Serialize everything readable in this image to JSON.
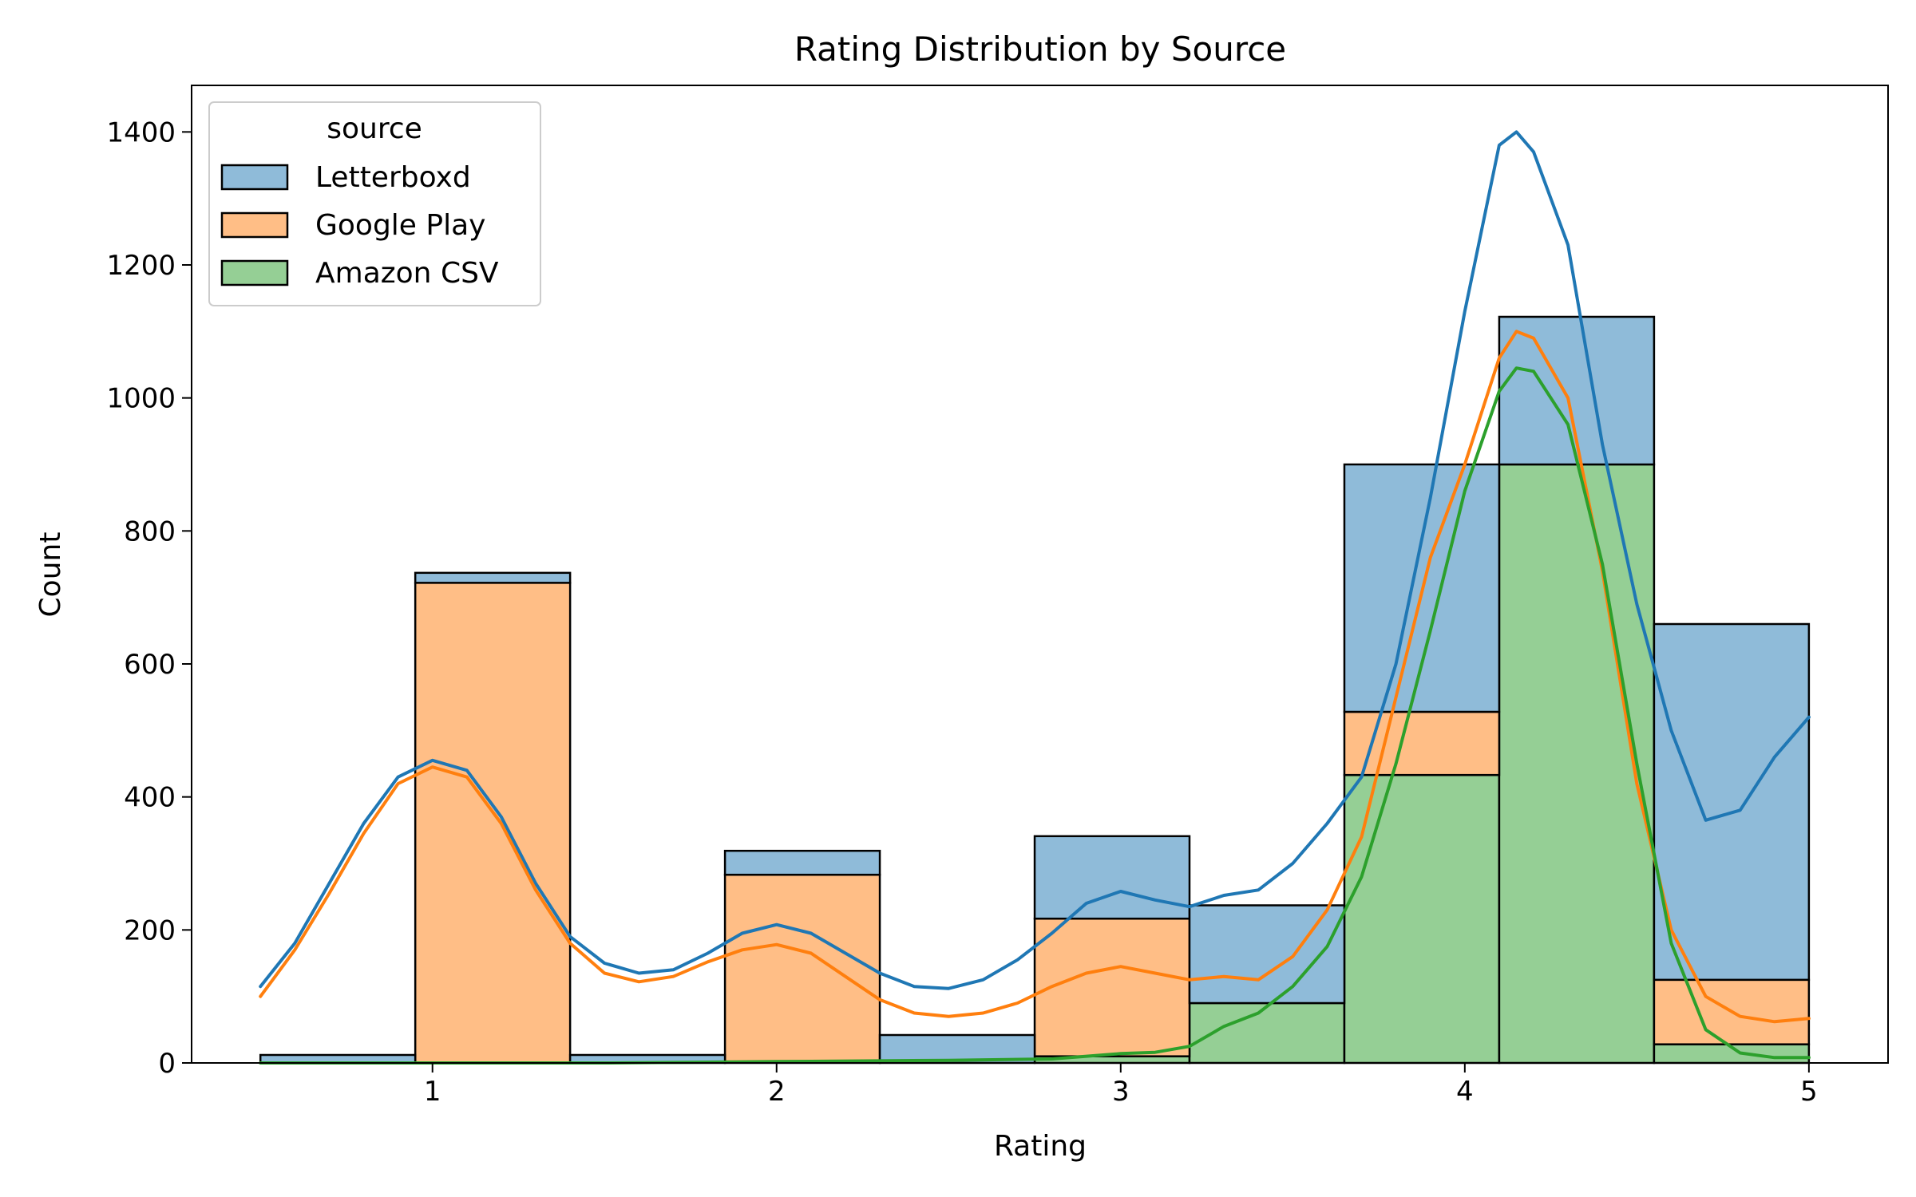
{
  "chart_data": {
    "type": "bar",
    "stacked": true,
    "title": "Rating Distribution by Source",
    "xlabel": "Rating",
    "ylabel": "Count",
    "xlim": [
      0.3,
      5.23
    ],
    "ylim": [
      0,
      1470
    ],
    "xticks": [
      1,
      2,
      3,
      4,
      5
    ],
    "yticks": [
      0,
      200,
      400,
      600,
      800,
      1000,
      1200,
      1400
    ],
    "grid": false,
    "legend": {
      "title": "source",
      "placement": "top-left",
      "entries": [
        "Letterboxd",
        "Google Play",
        "Amazon CSV"
      ]
    },
    "bin_edges": [
      0.5,
      0.95,
      1.4,
      1.85,
      2.3,
      2.75,
      3.2,
      3.65,
      4.1,
      4.55,
      5.0
    ],
    "series": [
      {
        "name": "Amazon CSV",
        "color": "#2ca02c",
        "fill": "#95cf95",
        "values": [
          0,
          0,
          0,
          0,
          0,
          10,
          90,
          433,
          900,
          28
        ]
      },
      {
        "name": "Google Play",
        "color": "#ff7f0e",
        "fill": "#ffbe86",
        "values": [
          0,
          722,
          0,
          283,
          0,
          207,
          0,
          95,
          0,
          97
        ]
      },
      {
        "name": "Letterboxd",
        "color": "#1f77b4",
        "fill": "#8fbbd9",
        "values": [
          12,
          15,
          12,
          36,
          42,
          124,
          147,
          372,
          222,
          535
        ]
      }
    ],
    "kde": [
      {
        "name": "Letterboxd",
        "color": "#1f77b4",
        "points": [
          [
            0.5,
            115
          ],
          [
            0.6,
            180
          ],
          [
            0.7,
            270
          ],
          [
            0.8,
            360
          ],
          [
            0.9,
            430
          ],
          [
            1.0,
            455
          ],
          [
            1.1,
            440
          ],
          [
            1.2,
            370
          ],
          [
            1.3,
            270
          ],
          [
            1.4,
            190
          ],
          [
            1.5,
            150
          ],
          [
            1.6,
            135
          ],
          [
            1.7,
            140
          ],
          [
            1.8,
            165
          ],
          [
            1.9,
            195
          ],
          [
            2.0,
            208
          ],
          [
            2.1,
            195
          ],
          [
            2.2,
            165
          ],
          [
            2.3,
            135
          ],
          [
            2.4,
            115
          ],
          [
            2.5,
            112
          ],
          [
            2.6,
            125
          ],
          [
            2.7,
            155
          ],
          [
            2.8,
            195
          ],
          [
            2.9,
            240
          ],
          [
            3.0,
            258
          ],
          [
            3.1,
            245
          ],
          [
            3.2,
            235
          ],
          [
            3.3,
            252
          ],
          [
            3.4,
            260
          ],
          [
            3.5,
            300
          ],
          [
            3.6,
            360
          ],
          [
            3.7,
            430
          ],
          [
            3.8,
            600
          ],
          [
            3.9,
            850
          ],
          [
            4.0,
            1130
          ],
          [
            4.1,
            1380
          ],
          [
            4.15,
            1400
          ],
          [
            4.2,
            1370
          ],
          [
            4.3,
            1230
          ],
          [
            4.4,
            930
          ],
          [
            4.5,
            690
          ],
          [
            4.6,
            500
          ],
          [
            4.7,
            365
          ],
          [
            4.8,
            380
          ],
          [
            4.9,
            460
          ],
          [
            5.0,
            520
          ]
        ]
      },
      {
        "name": "Google Play",
        "color": "#ff7f0e",
        "points": [
          [
            0.5,
            100
          ],
          [
            0.6,
            170
          ],
          [
            0.7,
            255
          ],
          [
            0.8,
            345
          ],
          [
            0.9,
            420
          ],
          [
            1.0,
            445
          ],
          [
            1.1,
            430
          ],
          [
            1.2,
            360
          ],
          [
            1.3,
            260
          ],
          [
            1.4,
            180
          ],
          [
            1.5,
            135
          ],
          [
            1.6,
            122
          ],
          [
            1.7,
            130
          ],
          [
            1.8,
            152
          ],
          [
            1.9,
            170
          ],
          [
            2.0,
            178
          ],
          [
            2.1,
            165
          ],
          [
            2.2,
            130
          ],
          [
            2.3,
            95
          ],
          [
            2.4,
            75
          ],
          [
            2.5,
            70
          ],
          [
            2.6,
            75
          ],
          [
            2.7,
            90
          ],
          [
            2.8,
            115
          ],
          [
            2.9,
            135
          ],
          [
            3.0,
            145
          ],
          [
            3.1,
            135
          ],
          [
            3.2,
            125
          ],
          [
            3.3,
            130
          ],
          [
            3.4,
            125
          ],
          [
            3.5,
            160
          ],
          [
            3.6,
            230
          ],
          [
            3.7,
            340
          ],
          [
            3.8,
            550
          ],
          [
            3.9,
            760
          ],
          [
            4.0,
            900
          ],
          [
            4.1,
            1060
          ],
          [
            4.15,
            1100
          ],
          [
            4.2,
            1090
          ],
          [
            4.3,
            1000
          ],
          [
            4.4,
            740
          ],
          [
            4.5,
            420
          ],
          [
            4.6,
            200
          ],
          [
            4.7,
            100
          ],
          [
            4.8,
            70
          ],
          [
            4.9,
            62
          ],
          [
            5.0,
            67
          ]
        ]
      },
      {
        "name": "Amazon CSV",
        "color": "#2ca02c",
        "points": [
          [
            0.5,
            0
          ],
          [
            1.0,
            0
          ],
          [
            1.5,
            0
          ],
          [
            2.0,
            2
          ],
          [
            2.5,
            4
          ],
          [
            2.8,
            6
          ],
          [
            3.0,
            14
          ],
          [
            3.1,
            16
          ],
          [
            3.2,
            25
          ],
          [
            3.3,
            55
          ],
          [
            3.4,
            75
          ],
          [
            3.5,
            115
          ],
          [
            3.6,
            175
          ],
          [
            3.7,
            280
          ],
          [
            3.8,
            450
          ],
          [
            3.9,
            650
          ],
          [
            4.0,
            860
          ],
          [
            4.1,
            1010
          ],
          [
            4.15,
            1045
          ],
          [
            4.2,
            1040
          ],
          [
            4.3,
            960
          ],
          [
            4.4,
            750
          ],
          [
            4.5,
            450
          ],
          [
            4.6,
            180
          ],
          [
            4.7,
            50
          ],
          [
            4.8,
            15
          ],
          [
            4.9,
            8
          ],
          [
            5.0,
            8
          ]
        ]
      }
    ]
  }
}
